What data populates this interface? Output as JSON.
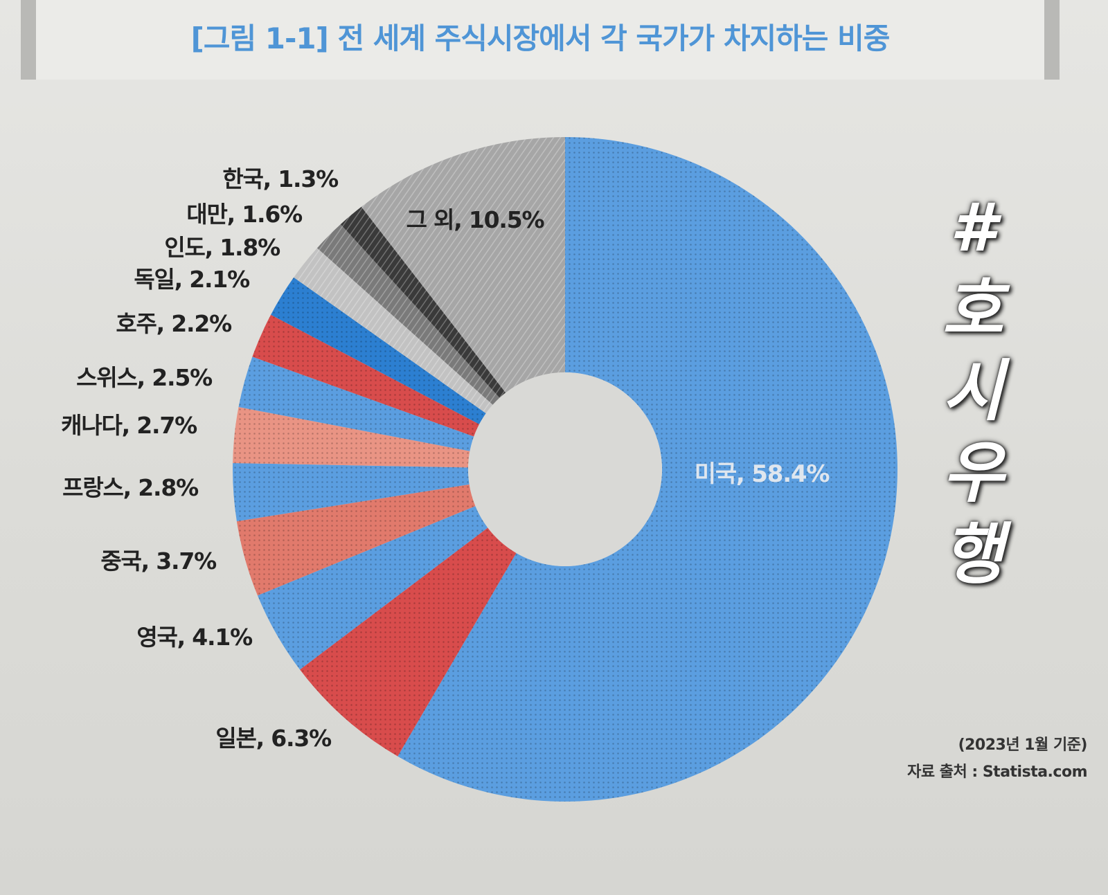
{
  "figure_title": "[그림 1-1] 전 세계 주식시장에서 각 국가가 차지하는 비중",
  "handwritten_mark": [
    "#",
    "호",
    "시",
    "우",
    "행"
  ],
  "date_note": "(2023년 1월 기준)",
  "source_note": "자료 출처 : Statista.com",
  "chart_data": {
    "type": "pie",
    "donut": true,
    "title": "[그림 1-1] 전 세계 주식시장에서 각 국가가 차지하는 비중",
    "slices": [
      {
        "label": "미국, 58.4%",
        "value": 58.4,
        "color": "#5b9ee0",
        "label_color": "#dfe6ee"
      },
      {
        "label": "일본, 6.3%",
        "value": 6.3,
        "color": "#d84c4c",
        "label_color": "#222222"
      },
      {
        "label": "영국, 4.1%",
        "value": 4.1,
        "color": "#5b9ee0",
        "label_color": "#222222"
      },
      {
        "label": "중국, 3.7%",
        "value": 3.7,
        "color": "#e17a6c",
        "label_color": "#222222"
      },
      {
        "label": "프랑스, 2.8%",
        "value": 2.8,
        "color": "#5b9ee0",
        "label_color": "#222222"
      },
      {
        "label": "캐나다, 2.7%",
        "value": 2.7,
        "color": "#e99484",
        "label_color": "#222222"
      },
      {
        "label": "스위스, 2.5%",
        "value": 2.5,
        "color": "#5b9ee0",
        "label_color": "#222222"
      },
      {
        "label": "호주, 2.2%",
        "value": 2.2,
        "color": "#d84c4c",
        "label_color": "#222222"
      },
      {
        "label": "독일, 2.1%",
        "value": 2.1,
        "color": "#2c7fd1",
        "label_color": "#222222"
      },
      {
        "label": "인도, 1.8%",
        "value": 1.8,
        "color": "#c2c2c2",
        "label_color": "#222222"
      },
      {
        "label": "대만, 1.6%",
        "value": 1.6,
        "color": "#7a7a7a",
        "label_color": "#222222"
      },
      {
        "label": "한국, 1.3%",
        "value": 1.3,
        "color": "#3a3a3a",
        "label_color": "#222222"
      },
      {
        "label": "그 외, 10.5%",
        "value": 10.5,
        "color": "#a6a6a6",
        "label_color": "#222222"
      }
    ]
  }
}
